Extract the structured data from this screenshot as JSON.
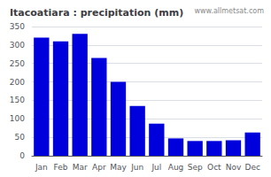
{
  "chart_data": {
    "type": "bar",
    "title": "Itacoatiara : precipitation (mm)",
    "categories": [
      "Jan",
      "Feb",
      "Mar",
      "Apr",
      "May",
      "Jun",
      "Jul",
      "Aug",
      "Sep",
      "Oct",
      "Nov",
      "Dec"
    ],
    "values": [
      320,
      310,
      330,
      265,
      200,
      135,
      87,
      47,
      40,
      40,
      42,
      63
    ],
    "color": "#0000dd",
    "ylim": [
      0,
      350
    ],
    "yticks": [
      0,
      50,
      100,
      150,
      200,
      250,
      300,
      350
    ],
    "grid": true,
    "annotation": "www.allmetsat.com"
  }
}
